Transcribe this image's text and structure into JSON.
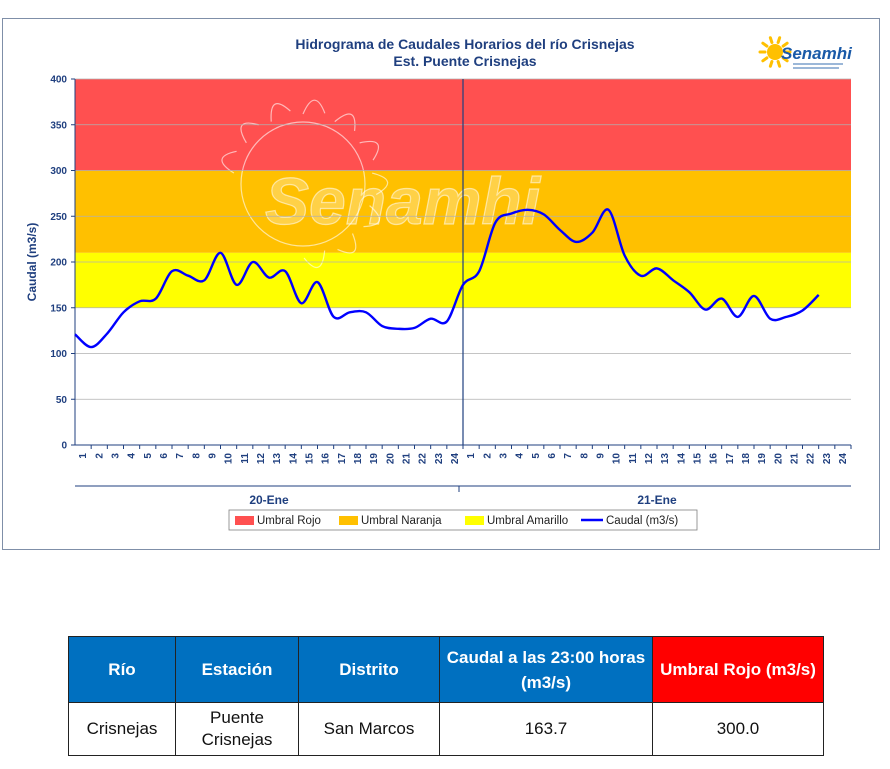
{
  "chart_data": {
    "type": "line",
    "title": "Hidrograma de Caudales Horarios del río Crisnejas",
    "subtitle": "Est. Puente Crisnejas",
    "ylabel": "Caudal  (m3/s)",
    "ylim": [
      0,
      400
    ],
    "yticks": [
      0,
      50,
      100,
      150,
      200,
      250,
      300,
      350,
      400
    ],
    "x_ticks_day1": [
      "1",
      "2",
      "3",
      "4",
      "5",
      "6",
      "7",
      "8",
      "9",
      "10",
      "11",
      "12",
      "13",
      "14",
      "15",
      "16",
      "17",
      "18",
      "19",
      "20",
      "21",
      "22",
      "23",
      "24"
    ],
    "x_ticks_day2": [
      "1",
      "2",
      "3",
      "4",
      "5",
      "6",
      "7",
      "8",
      "9",
      "10",
      "11",
      "12",
      "13",
      "14",
      "15",
      "16",
      "17",
      "18",
      "19",
      "20",
      "21",
      "22",
      "23",
      "24"
    ],
    "days": [
      "20-Ene",
      "21-Ene"
    ],
    "thresholds": [
      {
        "name": "Umbral Rojo",
        "from": 300,
        "to": 400,
        "color": "#ff5050"
      },
      {
        "name": "Umbral Naranja",
        "from": 210,
        "to": 300,
        "color": "#ffc000"
      },
      {
        "name": "Umbral Amarillo",
        "from": 150,
        "to": 210,
        "color": "#ffff00"
      }
    ],
    "series": [
      {
        "name": "Caudal (m3/s)",
        "color": "#0000ff",
        "points": [
          [
            0,
            121
          ],
          [
            1,
            107
          ],
          [
            2,
            122
          ],
          [
            3,
            145
          ],
          [
            4,
            157
          ],
          [
            5,
            160
          ],
          [
            6,
            190
          ],
          [
            7,
            185
          ],
          [
            8,
            180
          ],
          [
            9,
            210
          ],
          [
            10,
            175
          ],
          [
            11,
            200
          ],
          [
            12,
            183
          ],
          [
            13,
            190
          ],
          [
            14,
            155
          ],
          [
            15,
            178
          ],
          [
            16,
            140
          ],
          [
            17,
            145
          ],
          [
            18,
            145
          ],
          [
            19,
            130
          ],
          [
            20,
            127
          ],
          [
            21,
            128
          ],
          [
            22,
            138
          ],
          [
            23,
            135
          ],
          [
            24,
            175
          ],
          [
            25,
            190
          ],
          [
            26,
            243
          ],
          [
            27,
            253
          ],
          [
            28,
            257
          ],
          [
            29,
            252
          ],
          [
            30,
            235
          ],
          [
            31,
            222
          ],
          [
            32,
            232
          ],
          [
            33,
            257
          ],
          [
            34,
            207
          ],
          [
            35,
            185
          ],
          [
            36,
            193
          ],
          [
            37,
            180
          ],
          [
            38,
            167
          ],
          [
            39,
            148
          ],
          [
            40,
            160
          ],
          [
            41,
            140
          ],
          [
            42,
            163
          ],
          [
            43,
            138
          ],
          [
            44,
            140
          ],
          [
            45,
            147
          ],
          [
            46,
            164
          ]
        ]
      }
    ]
  },
  "legend": {
    "rojo": "Umbral Rojo",
    "naranja": "Umbral Naranja",
    "amarillo": "Umbral Amarillo",
    "caudal": "Caudal (m3/s)"
  },
  "logo": {
    "text": "Senamhi"
  },
  "watermark": {
    "text": "Senamhi"
  },
  "table": {
    "headers": [
      "Río",
      "Estación",
      "Distrito",
      "Caudal a las 23:00 horas (m3/s)",
      "Umbral Rojo (m3/s)"
    ],
    "row": [
      "Crisnejas",
      "Puente Crisnejas",
      "San Marcos",
      "163.7",
      "300.0"
    ]
  },
  "colors": {
    "header_blue": "#0070c0",
    "header_red": "#ff0000",
    "axis_text": "#1f3f7f",
    "line": "#0000ff"
  }
}
